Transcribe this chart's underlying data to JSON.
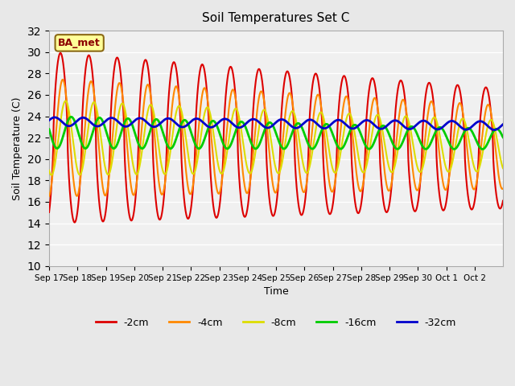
{
  "title": "Soil Temperatures Set C",
  "xlabel": "Time",
  "ylabel": "Soil Temperature (C)",
  "ylim": [
    10,
    32
  ],
  "yticks": [
    10,
    12,
    14,
    16,
    18,
    20,
    22,
    24,
    26,
    28,
    30,
    32
  ],
  "label_box_text": "BA_met",
  "label_box_color": "#ffff99",
  "label_box_edge": "#8B6914",
  "series_colors": {
    "-2cm": "#dd0000",
    "-4cm": "#ff8800",
    "-8cm": "#dddd00",
    "-16cm": "#00cc00",
    "-32cm": "#0000cc"
  },
  "series_linewidths": {
    "-2cm": 1.5,
    "-4cm": 1.5,
    "-8cm": 1.5,
    "-16cm": 2.0,
    "-32cm": 2.0
  },
  "background_color": "#e8e8e8",
  "plot_bg_color": "#f0f0f0",
  "grid_color": "#ffffff",
  "xtick_labels": [
    "Sep 17",
    "Sep 18",
    "Sep 19",
    "Sep 20",
    "Sep 21",
    "Sep 22",
    "Sep 23",
    "Sep 24",
    "Sep 25",
    "Sep 26",
    "Sep 27",
    "Sep 28",
    "Sep 29",
    "Sep 30",
    "Oct 1",
    "Oct 2"
  ],
  "n_days": 16,
  "figsize": [
    6.4,
    4.8
  ],
  "dpi": 100,
  "legend_labels": [
    "-2cm",
    "-4cm",
    "-8cm",
    "-16cm",
    "-32cm"
  ]
}
